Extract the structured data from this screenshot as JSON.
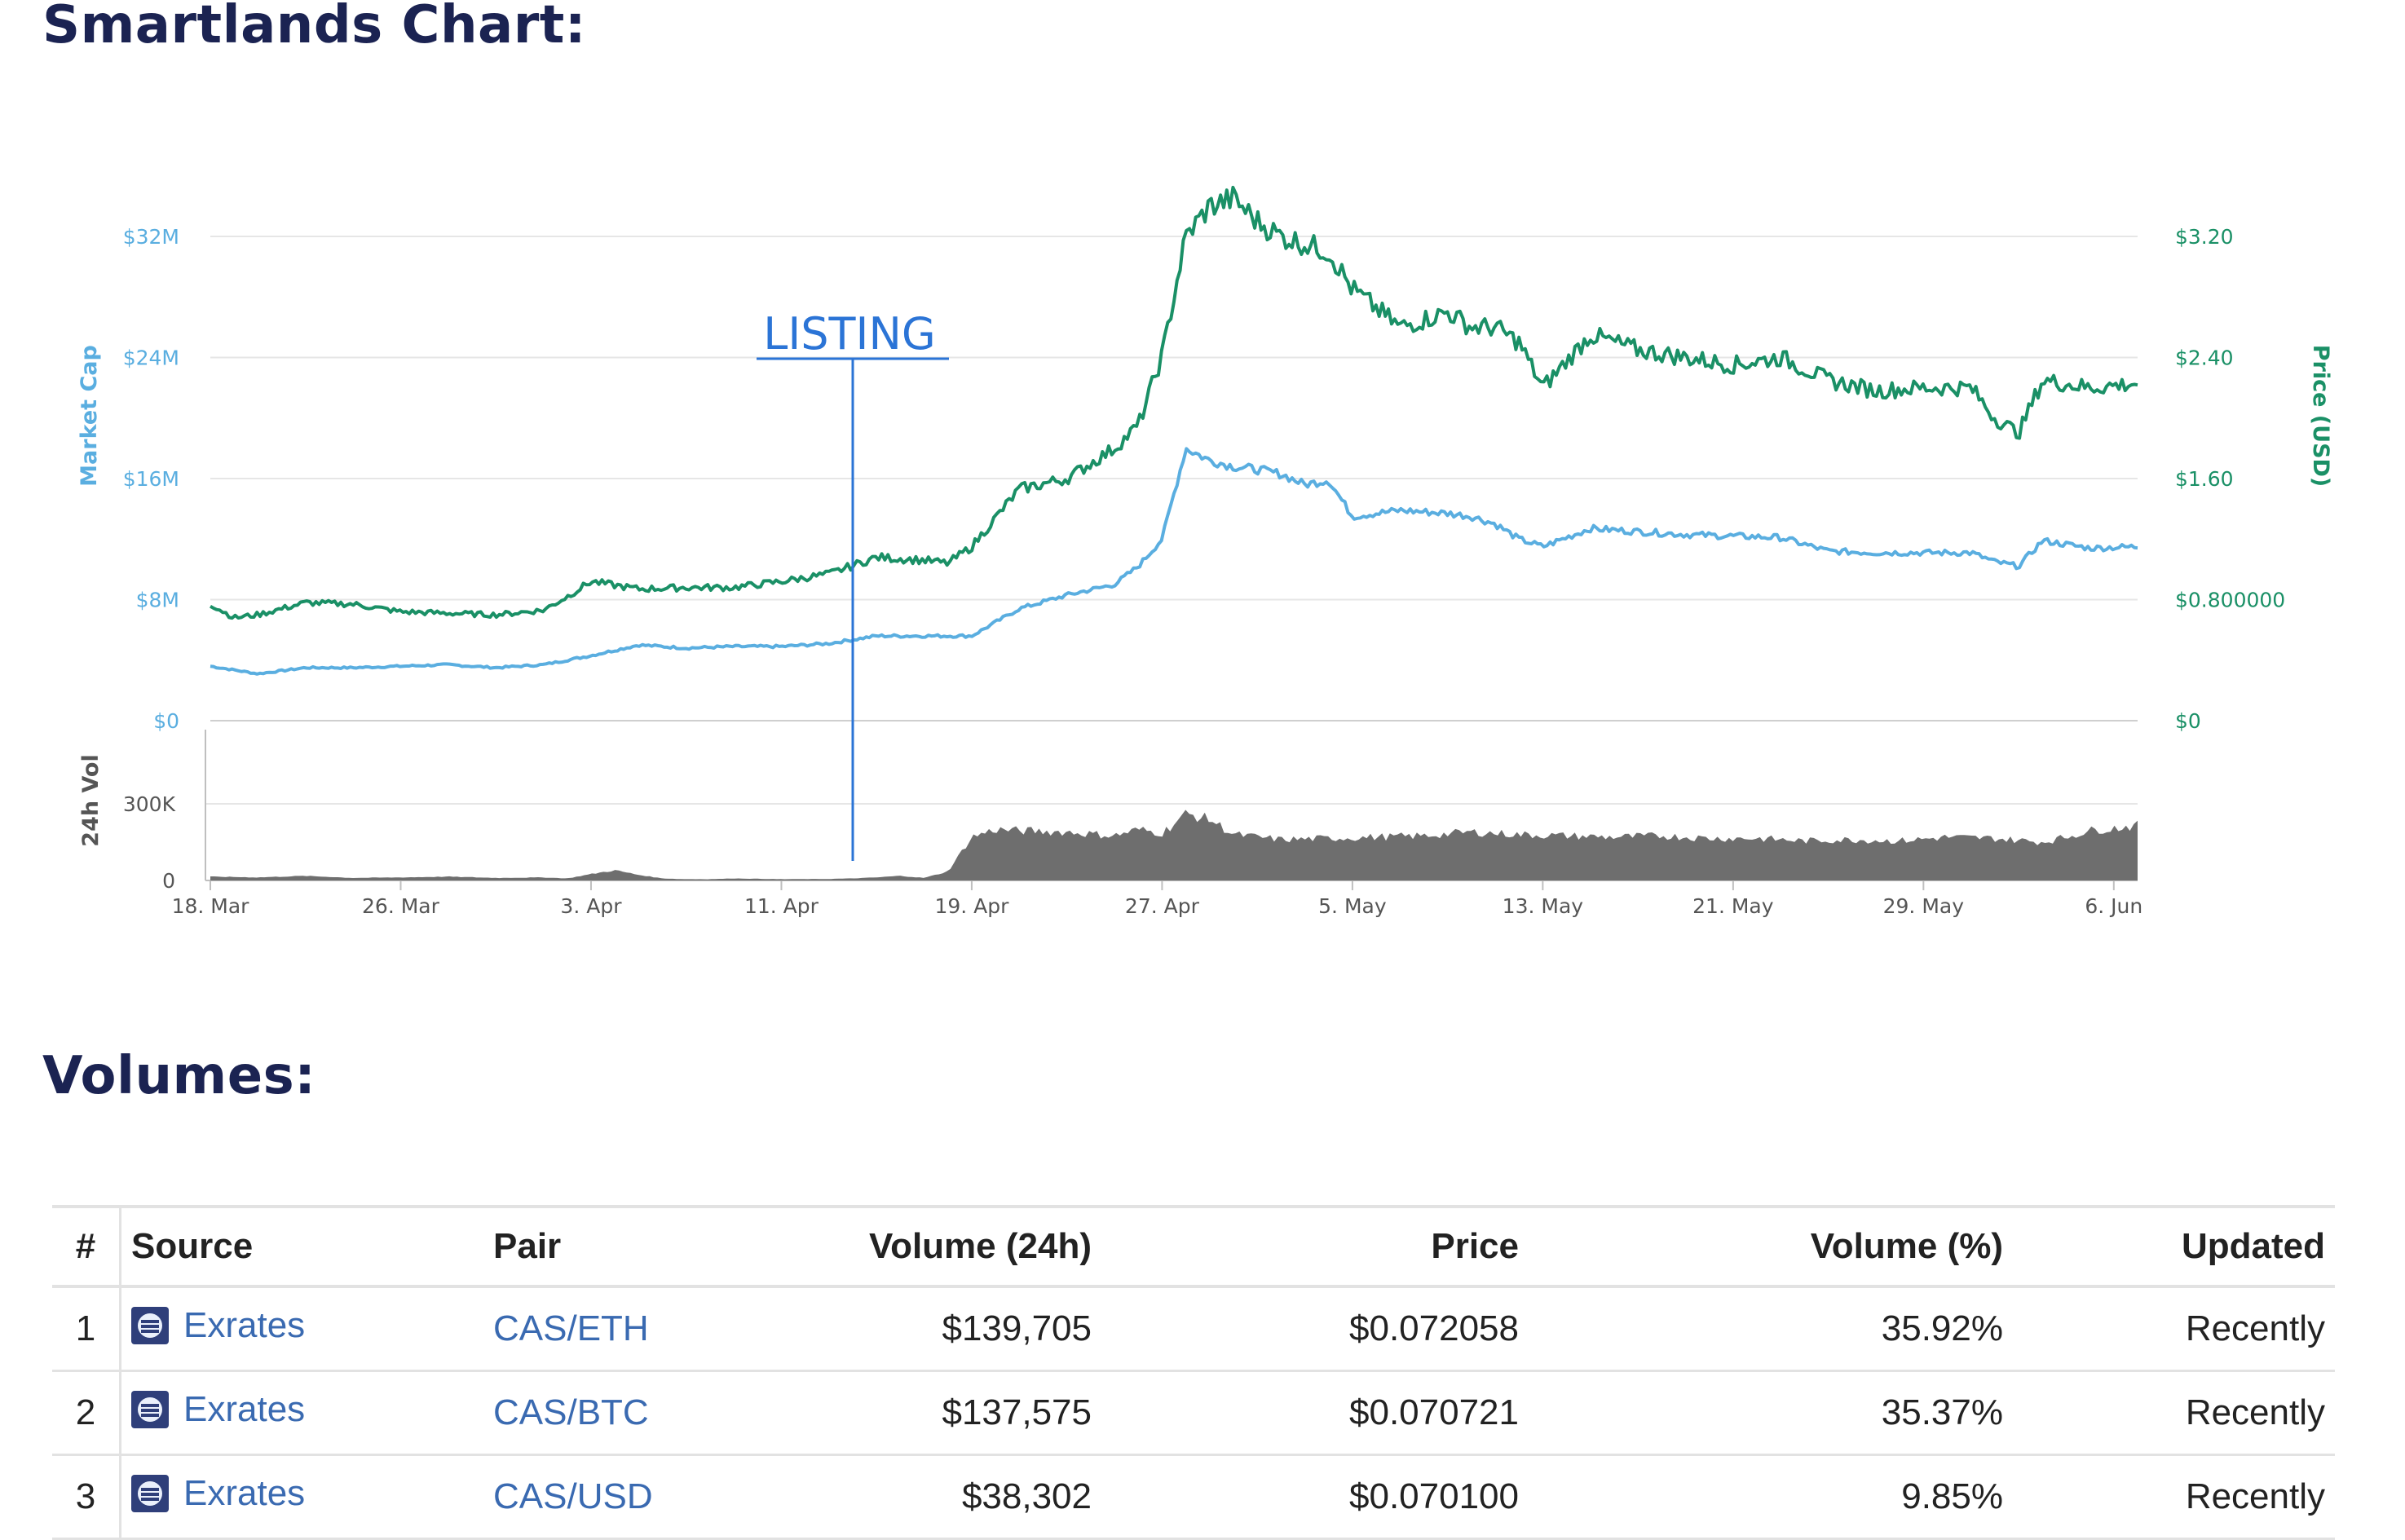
{
  "page": {
    "chart_heading": "Smartlands Chart:",
    "volumes_heading": "Volumes:"
  },
  "colors": {
    "heading": "#1b2352",
    "market_cap": "#5aaee0",
    "price": "#1a9066",
    "volume": "#6e6e6e",
    "listing": "#2b74d6",
    "link": "#3a6ab1"
  },
  "chart_data": {
    "type": "line",
    "title": "",
    "annotation": "LISTING",
    "annotation_date": "2018-04-14",
    "left_axis_label": "Market Cap",
    "right_axis_label": "Price (USD)",
    "volume_axis_label": "24h Vol",
    "left_ticks": [
      "$0",
      "$8M",
      "$16M",
      "$24M",
      "$32M"
    ],
    "left_tick_values": [
      0,
      8,
      16,
      24,
      32
    ],
    "right_ticks": [
      "$0",
      "$0.800000",
      "$1.60",
      "$2.40",
      "$3.20"
    ],
    "volume_ticks": [
      "0",
      "300K"
    ],
    "volume_tick_values": [
      0,
      300
    ],
    "ylim_market_cap_musd": [
      0,
      32
    ],
    "ylim_volume_k": [
      0,
      300
    ],
    "x_ticks": [
      "18. Mar",
      "26. Mar",
      "3. Apr",
      "11. Apr",
      "19. Apr",
      "27. Apr",
      "5. May",
      "13. May",
      "21. May",
      "29. May",
      "6. Jun"
    ],
    "x_tick_dates": [
      "2018-03-18",
      "2018-03-26",
      "2018-04-03",
      "2018-04-11",
      "2018-04-19",
      "2018-04-27",
      "2018-05-05",
      "2018-05-13",
      "2018-05-21",
      "2018-05-29",
      "2018-06-06"
    ],
    "grid": true,
    "series": [
      {
        "name": "Market Cap",
        "axis": "left",
        "unit": "M USD",
        "x": [
          "2018-03-18",
          "2018-03-20",
          "2018-03-22",
          "2018-03-24",
          "2018-03-26",
          "2018-03-28",
          "2018-03-30",
          "2018-04-01",
          "2018-04-03",
          "2018-04-05",
          "2018-04-07",
          "2018-04-09",
          "2018-04-11",
          "2018-04-13",
          "2018-04-15",
          "2018-04-17",
          "2018-04-19",
          "2018-04-21",
          "2018-04-23",
          "2018-04-25",
          "2018-04-26",
          "2018-04-27",
          "2018-04-28",
          "2018-04-29",
          "2018-04-30",
          "2018-05-01",
          "2018-05-02",
          "2018-05-03",
          "2018-05-04",
          "2018-05-05",
          "2018-05-07",
          "2018-05-09",
          "2018-05-10",
          "2018-05-11",
          "2018-05-12",
          "2018-05-13",
          "2018-05-15",
          "2018-05-17",
          "2018-05-19",
          "2018-05-21",
          "2018-05-23",
          "2018-05-25",
          "2018-05-27",
          "2018-05-29",
          "2018-05-31",
          "2018-06-01",
          "2018-06-02",
          "2018-06-03",
          "2018-06-05",
          "2018-06-07"
        ],
        "values": [
          3.6,
          3.1,
          3.5,
          3.5,
          3.6,
          3.7,
          3.5,
          3.7,
          4.3,
          5.0,
          4.8,
          4.9,
          4.9,
          5.1,
          5.6,
          5.6,
          5.6,
          7.4,
          8.3,
          9.0,
          10.2,
          12.0,
          18.0,
          17.2,
          16.8,
          16.6,
          16.3,
          15.6,
          15.9,
          13.5,
          13.9,
          13.7,
          13.5,
          13.0,
          12.0,
          11.5,
          12.7,
          12.5,
          12.3,
          12.2,
          12.1,
          11.2,
          11.1,
          11.1,
          11.1,
          10.5,
          10.2,
          11.9,
          11.4,
          11.5
        ]
      },
      {
        "name": "Price (USD)",
        "axis": "right",
        "unit": "USD",
        "x": [
          "2018-03-18",
          "2018-03-19",
          "2018-03-20",
          "2018-03-22",
          "2018-03-24",
          "2018-03-26",
          "2018-03-28",
          "2018-03-30",
          "2018-04-01",
          "2018-04-02",
          "2018-04-03",
          "2018-04-05",
          "2018-04-07",
          "2018-04-09",
          "2018-04-11",
          "2018-04-13",
          "2018-04-15",
          "2018-04-17",
          "2018-04-18",
          "2018-04-19",
          "2018-04-21",
          "2018-04-23",
          "2018-04-24",
          "2018-04-25",
          "2018-04-26",
          "2018-04-27",
          "2018-04-28",
          "2018-04-29",
          "2018-04-30",
          "2018-05-01",
          "2018-05-02",
          "2018-05-03",
          "2018-05-04",
          "2018-05-05",
          "2018-05-07",
          "2018-05-09",
          "2018-05-10",
          "2018-05-11",
          "2018-05-12",
          "2018-05-13",
          "2018-05-15",
          "2018-05-17",
          "2018-05-19",
          "2018-05-21",
          "2018-05-23",
          "2018-05-25",
          "2018-05-27",
          "2018-05-29",
          "2018-05-31",
          "2018-06-01",
          "2018-06-02",
          "2018-06-03",
          "2018-06-05",
          "2018-06-07"
        ],
        "values": [
          0.77,
          0.68,
          0.7,
          0.78,
          0.77,
          0.72,
          0.71,
          0.7,
          0.73,
          0.82,
          0.92,
          0.87,
          0.88,
          0.88,
          0.92,
          0.97,
          1.08,
          1.06,
          1.04,
          1.15,
          1.53,
          1.6,
          1.7,
          1.8,
          1.95,
          2.41,
          3.2,
          3.4,
          3.45,
          3.3,
          3.2,
          3.15,
          3.1,
          2.85,
          2.6,
          2.7,
          2.6,
          2.6,
          2.5,
          2.2,
          2.55,
          2.45,
          2.4,
          2.35,
          2.4,
          2.25,
          2.18,
          2.2,
          2.2,
          2.0,
          1.9,
          2.25,
          2.2,
          2.23
        ]
      }
    ],
    "volume": {
      "name": "24h Vol",
      "unit": "K",
      "x": [
        "2018-03-18",
        "2018-03-20",
        "2018-03-22",
        "2018-03-24",
        "2018-03-26",
        "2018-03-28",
        "2018-03-30",
        "2018-04-01",
        "2018-04-02",
        "2018-04-03",
        "2018-04-04",
        "2018-04-05",
        "2018-04-06",
        "2018-04-07",
        "2018-04-08",
        "2018-04-09",
        "2018-04-11",
        "2018-04-13",
        "2018-04-14",
        "2018-04-15",
        "2018-04-16",
        "2018-04-17",
        "2018-04-18",
        "2018-04-19",
        "2018-04-20",
        "2018-04-21",
        "2018-04-23",
        "2018-04-25",
        "2018-04-26",
        "2018-04-27",
        "2018-04-28",
        "2018-04-29",
        "2018-04-30",
        "2018-05-02",
        "2018-05-04",
        "2018-05-06",
        "2018-05-08",
        "2018-05-10",
        "2018-05-12",
        "2018-05-14",
        "2018-05-16",
        "2018-05-18",
        "2018-05-20",
        "2018-05-22",
        "2018-05-24",
        "2018-05-26",
        "2018-05-28",
        "2018-05-30",
        "2018-06-01",
        "2018-06-03",
        "2018-06-04",
        "2018-06-05",
        "2018-06-07"
      ],
      "values": [
        15,
        12,
        18,
        10,
        12,
        15,
        10,
        12,
        8,
        25,
        40,
        22,
        8,
        5,
        5,
        8,
        5,
        6,
        8,
        12,
        18,
        10,
        35,
        170,
        200,
        195,
        190,
        175,
        200,
        185,
        260,
        240,
        180,
        160,
        165,
        170,
        175,
        190,
        180,
        175,
        170,
        175,
        165,
        165,
        155,
        160,
        155,
        170,
        165,
        150,
        170,
        195,
        215
      ]
    }
  },
  "table": {
    "headers": [
      "#",
      "Source",
      "Pair",
      "Volume (24h)",
      "Price",
      "Volume (%)",
      "Updated"
    ],
    "rows": [
      {
        "rank": "1",
        "source": "Exrates",
        "pair": "CAS/ETH",
        "volume": "$139,705",
        "price": "$0.072058",
        "volume_pct": "35.92%",
        "updated": "Recently"
      },
      {
        "rank": "2",
        "source": "Exrates",
        "pair": "CAS/BTC",
        "volume": "$137,575",
        "price": "$0.070721",
        "volume_pct": "35.37%",
        "updated": "Recently"
      },
      {
        "rank": "3",
        "source": "Exrates",
        "pair": "CAS/USD",
        "volume": "$38,302",
        "price": "$0.070100",
        "volume_pct": "9.85%",
        "updated": "Recently"
      }
    ],
    "source_icon": "exrates-logo-icon"
  }
}
